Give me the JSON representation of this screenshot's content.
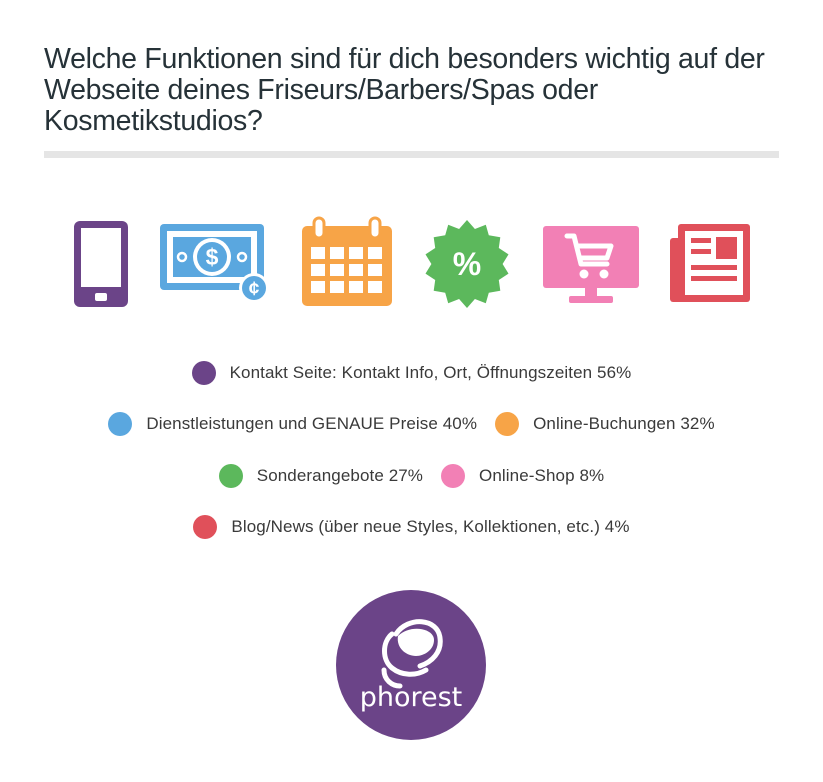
{
  "chart_data": {
    "type": "bar",
    "title": "Welche Funktionen sind für dich besonders wichtig auf der Webseite deines Friseurs/Barbers/Spas oder Kosmetikstudios?",
    "unit": "%",
    "categories": [
      "Kontakt Seite: Kontakt Info, Ort, Öffnungszeiten",
      "Dienstleistungen und GENAUE Preise",
      "Online-Buchungen",
      "Sonderangebote",
      "Online-Shop",
      "Blog/News (über neue Styles, Kollektionen, etc.)"
    ],
    "values": [
      56,
      40,
      32,
      27,
      8,
      4
    ],
    "colors": [
      "#6b4488",
      "#5aa7df",
      "#f7a447",
      "#5cb85c",
      "#f280b5",
      "#e0505a"
    ],
    "icons": [
      "mobile-phone-icon",
      "banknote-dollar-icon",
      "calendar-icon",
      "discount-badge-icon",
      "shopping-cart-monitor-icon",
      "newspaper-icon"
    ],
    "legend": {
      "items": [
        "Kontakt Seite: Kontakt Info, Ort, Öffnungszeiten 56%",
        "Dienstleistungen und GENAUE Preise 40%",
        "Online-Buchungen 32%",
        "Sonderangebote 27%",
        "Online-Shop 8%",
        "Blog/News (über neue Styles, Kollektionen, etc.) 4%"
      ]
    },
    "legend_placement": "center"
  },
  "icon_glyphs": {
    "dollar": "$",
    "cent": "¢",
    "percent": "%"
  },
  "logo": {
    "text": "phorest",
    "color": "#6b4488"
  }
}
